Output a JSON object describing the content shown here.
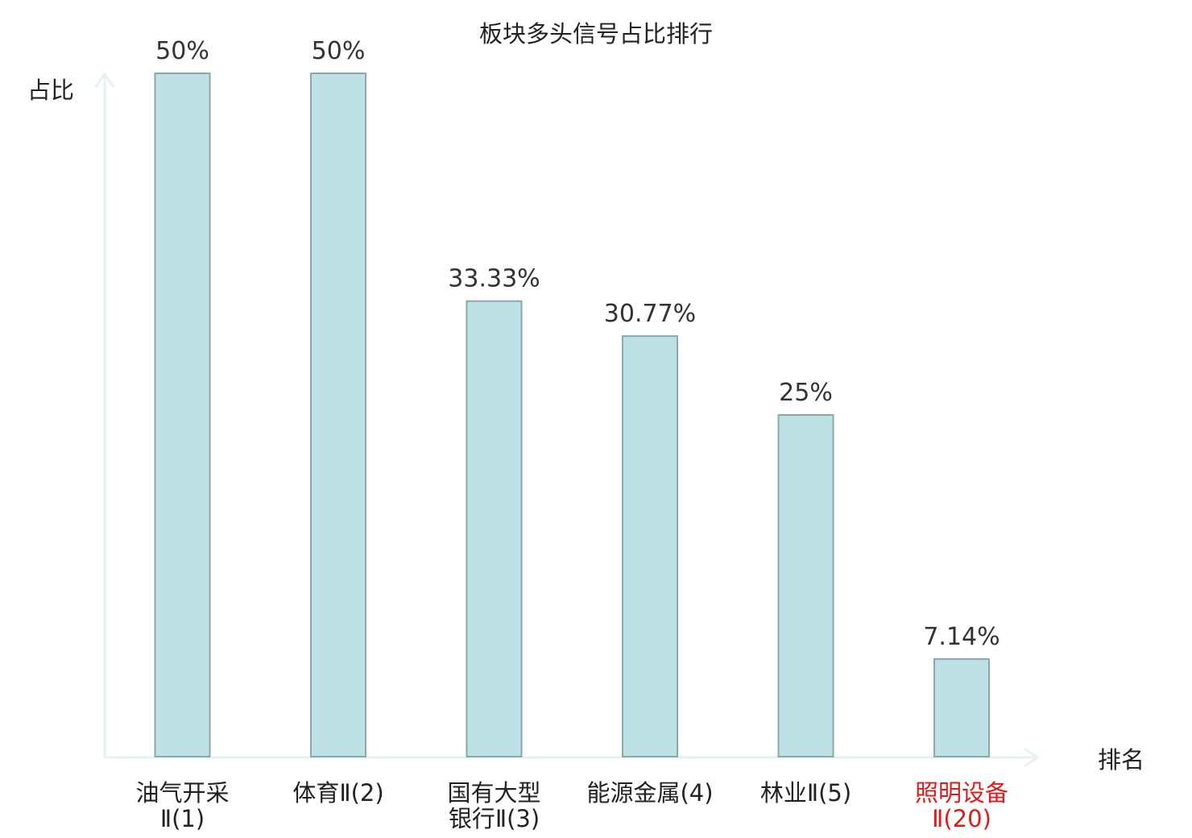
{
  "chart_data": {
    "type": "bar",
    "title": "板块多头信号占比排行",
    "ylabel": "占比",
    "xlabel": "排名",
    "ylim": [
      0,
      50
    ],
    "grid": false,
    "categories": [
      {
        "name": "油气开采",
        "suffix": "Ⅱ(1)",
        "line1": "油气开采",
        "line2": "Ⅱ(1)",
        "highlight": false
      },
      {
        "name": "体育",
        "suffix": "Ⅱ(2)",
        "line1": "体育Ⅱ(2)",
        "line2": "",
        "highlight": false
      },
      {
        "name": "国有大型银行",
        "suffix": "Ⅱ(3)",
        "line1": "国有大型",
        "line2": "银行Ⅱ(3)",
        "highlight": false
      },
      {
        "name": "能源金属",
        "suffix": "(4)",
        "line1": "能源金属(4)",
        "line2": "",
        "highlight": false
      },
      {
        "name": "林业",
        "suffix": "Ⅱ(5)",
        "line1": "林业Ⅱ(5)",
        "line2": "",
        "highlight": false
      },
      {
        "name": "照明设备",
        "suffix": "Ⅱ(20)",
        "line1": "照明设备",
        "line2": "Ⅱ(20)",
        "highlight": true
      }
    ],
    "values": [
      50,
      50,
      33.33,
      30.77,
      25,
      7.14
    ],
    "value_labels": [
      "50%",
      "50%",
      "33.33%",
      "30.77%",
      "25%",
      "7.14%"
    ]
  },
  "colors": {
    "bar_fill": "#bde1e4",
    "bar_stroke": "#8aa9ad",
    "axis": "#e2f3f1",
    "highlight_text": "#dd1b1b",
    "text": "#222222"
  }
}
